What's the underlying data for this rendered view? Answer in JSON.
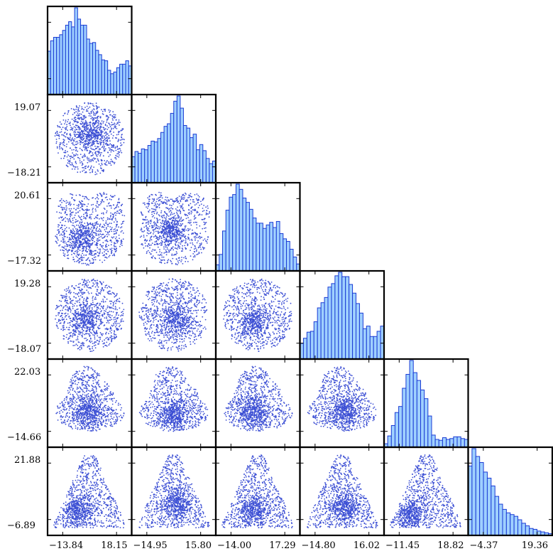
{
  "chart_data": {
    "type": "pairplot",
    "title": "",
    "n_vars": 6,
    "colors": {
      "point": "#3c4fd4",
      "bar_face": "#9fd0ff",
      "bar_edge": "#1a3bd4",
      "frame": "#000000"
    },
    "y_ticks": [
      null,
      [
        "19.07",
        "−18.21"
      ],
      [
        "20.61",
        "−17.32"
      ],
      [
        "19.28",
        "−18.07"
      ],
      [
        "22.03",
        "−14.66"
      ],
      [
        "21.88",
        "−6.89"
      ]
    ],
    "x_ticks": [
      [
        "−13.84",
        "18.15"
      ],
      [
        "−14.95",
        "15.80"
      ],
      [
        "−14.00",
        "17.29"
      ],
      [
        "−14.80",
        "16.02"
      ],
      [
        "−11.45",
        "18.82"
      ],
      [
        "−4.37",
        "19.36"
      ]
    ],
    "histograms": [
      [
        0.5,
        0.62,
        0.66,
        0.66,
        0.69,
        0.74,
        0.8,
        0.84,
        0.78,
        1.0,
        0.87,
        0.8,
        0.8,
        0.64,
        0.59,
        0.6,
        0.51,
        0.46,
        0.4,
        0.39,
        0.28,
        0.24,
        0.26,
        0.31,
        0.35,
        0.35,
        0.39,
        0.33
      ],
      [
        0.3,
        0.36,
        0.34,
        0.39,
        0.38,
        0.43,
        0.48,
        0.47,
        0.51,
        0.58,
        0.65,
        0.68,
        0.8,
        0.94,
        1.0,
        0.86,
        0.66,
        0.63,
        0.52,
        0.56,
        0.38,
        0.44,
        0.37,
        0.28,
        0.22,
        0.25
      ],
      [
        0.07,
        0.19,
        0.46,
        0.7,
        0.85,
        0.88,
        1.0,
        0.94,
        0.84,
        0.79,
        0.71,
        0.61,
        0.55,
        0.55,
        0.49,
        0.53,
        0.56,
        0.5,
        0.57,
        0.43,
        0.37,
        0.34,
        0.25,
        0.16,
        0.08
      ],
      [
        0.18,
        0.24,
        0.31,
        0.32,
        0.43,
        0.59,
        0.65,
        0.71,
        0.83,
        0.87,
        0.96,
        1.0,
        0.95,
        0.95,
        0.86,
        0.76,
        0.64,
        0.53,
        0.35,
        0.38,
        0.26,
        0.26,
        0.32,
        0.38
      ],
      [
        0.04,
        0.13,
        0.25,
        0.4,
        0.47,
        0.68,
        0.84,
        1.0,
        0.86,
        0.77,
        0.66,
        0.56,
        0.36,
        0.14,
        0.09,
        0.08,
        0.11,
        0.09,
        0.1,
        0.12,
        0.12,
        0.1,
        0.09
      ],
      [
        0.8,
        1.0,
        0.91,
        0.84,
        0.73,
        0.66,
        0.57,
        0.45,
        0.36,
        0.3,
        0.26,
        0.24,
        0.22,
        0.18,
        0.14,
        0.11,
        0.08,
        0.07,
        0.05,
        0.04,
        0.03,
        0.02
      ]
    ],
    "scatter": [
      {
        "row": 1,
        "col": 0,
        "shape": "disk",
        "cluster": [
          0.52,
          0.45,
          0.18
        ]
      },
      {
        "row": 2,
        "col": 0,
        "shape": "heart",
        "cluster": [
          0.4,
          0.65,
          0.2
        ]
      },
      {
        "row": 2,
        "col": 1,
        "shape": "heart",
        "cluster": [
          0.48,
          0.55,
          0.15
        ]
      },
      {
        "row": 3,
        "col": 0,
        "shape": "disk-band",
        "cluster": [
          0.45,
          0.55,
          0.2
        ]
      },
      {
        "row": 3,
        "col": 1,
        "shape": "disk-band",
        "cluster": [
          0.55,
          0.55,
          0.18
        ]
      },
      {
        "row": 3,
        "col": 2,
        "shape": "disk-band",
        "cluster": [
          0.45,
          0.6,
          0.18
        ]
      },
      {
        "row": 4,
        "col": 0,
        "shape": "blob-band",
        "cluster": [
          0.5,
          0.6,
          0.18
        ]
      },
      {
        "row": 4,
        "col": 1,
        "shape": "tri-band",
        "cluster": [
          0.5,
          0.65,
          0.18
        ]
      },
      {
        "row": 4,
        "col": 2,
        "shape": "blob-band",
        "cluster": [
          0.45,
          0.62,
          0.18
        ]
      },
      {
        "row": 4,
        "col": 3,
        "shape": "blob-band",
        "cluster": [
          0.55,
          0.6,
          0.18
        ]
      },
      {
        "row": 5,
        "col": 0,
        "shape": "triangle",
        "cluster": [
          0.35,
          0.75,
          0.18
        ]
      },
      {
        "row": 5,
        "col": 1,
        "shape": "triangle",
        "cluster": [
          0.55,
          0.65,
          0.18
        ]
      },
      {
        "row": 5,
        "col": 2,
        "shape": "triangle",
        "cluster": [
          0.45,
          0.75,
          0.18
        ]
      },
      {
        "row": 5,
        "col": 3,
        "shape": "triangle",
        "cluster": [
          0.55,
          0.7,
          0.18
        ]
      },
      {
        "row": 5,
        "col": 4,
        "shape": "triangle",
        "cluster": [
          0.3,
          0.8,
          0.18
        ]
      }
    ]
  }
}
